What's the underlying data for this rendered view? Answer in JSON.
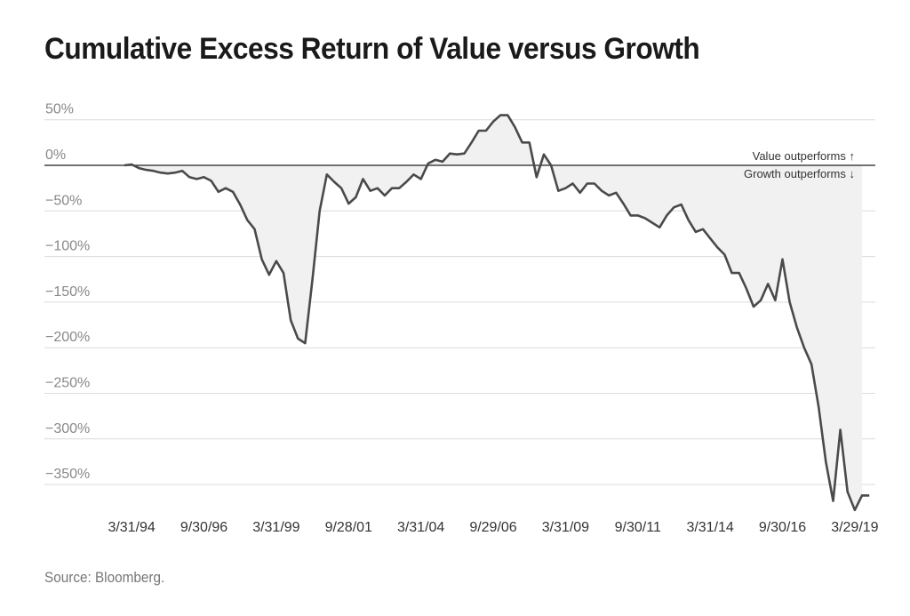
{
  "title": "Cumulative Excess Return of Value versus Growth",
  "source": "Source: Bloomberg.",
  "colors": {
    "line": "#4a4a4a",
    "area": "#f1f1f1",
    "grid": "#dcdcdc",
    "zero_line": "#444444"
  },
  "chart_data": {
    "type": "area",
    "title": "Cumulative Excess Return of Value versus Growth",
    "xlabel": "",
    "ylabel": "",
    "ylim": [
      -380,
      60
    ],
    "grid": true,
    "legend": "none",
    "yticks": [
      50,
      0,
      -50,
      -100,
      -150,
      -200,
      -250,
      -300,
      -350
    ],
    "ytick_labels": [
      "50%",
      "0%",
      "−50%",
      "−100%",
      "−150%",
      "−200%",
      "−250%",
      "−300%",
      "−350%"
    ],
    "xticks": [
      {
        "label": "3/31/94",
        "year": 1994.25
      },
      {
        "label": "9/30/96",
        "year": 1996.75
      },
      {
        "label": "3/31/99",
        "year": 1999.25
      },
      {
        "label": "9/28/01",
        "year": 2001.75
      },
      {
        "label": "3/31/04",
        "year": 2004.25
      },
      {
        "label": "9/29/06",
        "year": 2006.75
      },
      {
        "label": "3/31/09",
        "year": 2009.25
      },
      {
        "label": "9/30/11",
        "year": 2011.75
      },
      {
        "label": "3/31/14",
        "year": 2014.25
      },
      {
        "label": "9/30/16",
        "year": 2016.75
      },
      {
        "label": "3/29/19",
        "year": 2019.25
      }
    ],
    "annotations": [
      "Value outperforms ↑",
      "Growth outperforms ↓"
    ],
    "series": [
      {
        "values": [
          {
            "x": 1994.0,
            "y": 0
          },
          {
            "x": 1994.25,
            "y": 1
          },
          {
            "x": 1994.5,
            "y": -3
          },
          {
            "x": 1994.75,
            "y": -5
          },
          {
            "x": 1995.0,
            "y": -6
          },
          {
            "x": 1995.25,
            "y": -8
          },
          {
            "x": 1995.5,
            "y": -9
          },
          {
            "x": 1995.75,
            "y": -8
          },
          {
            "x": 1996.0,
            "y": -6
          },
          {
            "x": 1996.25,
            "y": -13
          },
          {
            "x": 1996.5,
            "y": -15
          },
          {
            "x": 1996.75,
            "y": -13
          },
          {
            "x": 1997.0,
            "y": -17
          },
          {
            "x": 1997.25,
            "y": -29
          },
          {
            "x": 1997.5,
            "y": -25
          },
          {
            "x": 1997.75,
            "y": -29
          },
          {
            "x": 1998.0,
            "y": -43
          },
          {
            "x": 1998.25,
            "y": -60
          },
          {
            "x": 1998.5,
            "y": -70
          },
          {
            "x": 1998.75,
            "y": -103
          },
          {
            "x": 1999.0,
            "y": -120
          },
          {
            "x": 1999.25,
            "y": -105
          },
          {
            "x": 1999.5,
            "y": -118
          },
          {
            "x": 1999.75,
            "y": -170
          },
          {
            "x": 2000.0,
            "y": -190
          },
          {
            "x": 2000.25,
            "y": -195
          },
          {
            "x": 2000.5,
            "y": -125
          },
          {
            "x": 2000.75,
            "y": -50
          },
          {
            "x": 2001.0,
            "y": -10
          },
          {
            "x": 2001.25,
            "y": -18
          },
          {
            "x": 2001.5,
            "y": -25
          },
          {
            "x": 2001.75,
            "y": -42
          },
          {
            "x": 2002.0,
            "y": -35
          },
          {
            "x": 2002.25,
            "y": -15
          },
          {
            "x": 2002.5,
            "y": -28
          },
          {
            "x": 2002.75,
            "y": -25
          },
          {
            "x": 2003.0,
            "y": -33
          },
          {
            "x": 2003.25,
            "y": -25
          },
          {
            "x": 2003.5,
            "y": -25
          },
          {
            "x": 2003.75,
            "y": -18
          },
          {
            "x": 2004.0,
            "y": -10
          },
          {
            "x": 2004.25,
            "y": -15
          },
          {
            "x": 2004.5,
            "y": 2
          },
          {
            "x": 2004.75,
            "y": 6
          },
          {
            "x": 2005.0,
            "y": 4
          },
          {
            "x": 2005.25,
            "y": 13
          },
          {
            "x": 2005.5,
            "y": 12
          },
          {
            "x": 2005.75,
            "y": 13
          },
          {
            "x": 2006.0,
            "y": 25
          },
          {
            "x": 2006.25,
            "y": 38
          },
          {
            "x": 2006.5,
            "y": 38
          },
          {
            "x": 2006.75,
            "y": 48
          },
          {
            "x": 2007.0,
            "y": 55
          },
          {
            "x": 2007.25,
            "y": 55
          },
          {
            "x": 2007.5,
            "y": 42
          },
          {
            "x": 2007.75,
            "y": 25
          },
          {
            "x": 2008.0,
            "y": 25
          },
          {
            "x": 2008.25,
            "y": -13
          },
          {
            "x": 2008.5,
            "y": 12
          },
          {
            "x": 2008.75,
            "y": 0
          },
          {
            "x": 2009.0,
            "y": -28
          },
          {
            "x": 2009.25,
            "y": -25
          },
          {
            "x": 2009.5,
            "y": -20
          },
          {
            "x": 2009.75,
            "y": -30
          },
          {
            "x": 2010.0,
            "y": -20
          },
          {
            "x": 2010.25,
            "y": -20
          },
          {
            "x": 2010.5,
            "y": -28
          },
          {
            "x": 2010.75,
            "y": -33
          },
          {
            "x": 2011.0,
            "y": -30
          },
          {
            "x": 2011.25,
            "y": -42
          },
          {
            "x": 2011.5,
            "y": -55
          },
          {
            "x": 2011.75,
            "y": -55
          },
          {
            "x": 2012.0,
            "y": -58
          },
          {
            "x": 2012.25,
            "y": -63
          },
          {
            "x": 2012.5,
            "y": -68
          },
          {
            "x": 2012.75,
            "y": -55
          },
          {
            "x": 2013.0,
            "y": -46
          },
          {
            "x": 2013.25,
            "y": -43
          },
          {
            "x": 2013.5,
            "y": -60
          },
          {
            "x": 2013.75,
            "y": -73
          },
          {
            "x": 2014.0,
            "y": -70
          },
          {
            "x": 2014.25,
            "y": -80
          },
          {
            "x": 2014.5,
            "y": -90
          },
          {
            "x": 2014.75,
            "y": -98
          },
          {
            "x": 2015.0,
            "y": -118
          },
          {
            "x": 2015.25,
            "y": -118
          },
          {
            "x": 2015.5,
            "y": -135
          },
          {
            "x": 2015.75,
            "y": -155
          },
          {
            "x": 2016.0,
            "y": -148
          },
          {
            "x": 2016.25,
            "y": -130
          },
          {
            "x": 2016.5,
            "y": -148
          },
          {
            "x": 2016.75,
            "y": -103
          },
          {
            "x": 2017.0,
            "y": -150
          },
          {
            "x": 2017.25,
            "y": -178
          },
          {
            "x": 2017.5,
            "y": -200
          },
          {
            "x": 2017.75,
            "y": -218
          },
          {
            "x": 2018.0,
            "y": -265
          },
          {
            "x": 2018.25,
            "y": -325
          },
          {
            "x": 2018.5,
            "y": -368
          },
          {
            "x": 2018.75,
            "y": -290
          },
          {
            "x": 2019.0,
            "y": -358
          },
          {
            "x": 2019.25,
            "y": -378
          },
          {
            "x": 2019.5,
            "y": -362
          },
          {
            "x": 2019.75,
            "y": -362
          }
        ]
      }
    ]
  }
}
